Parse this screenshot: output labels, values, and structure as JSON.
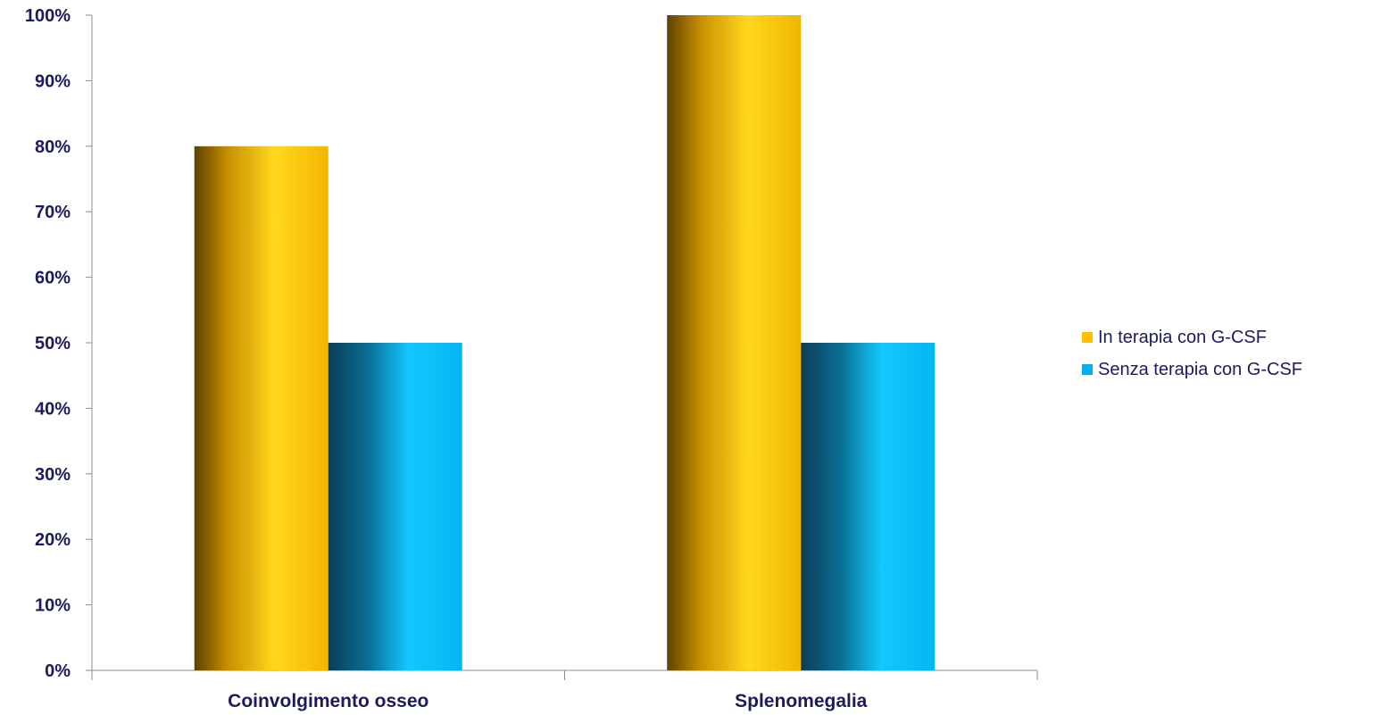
{
  "chart_data": {
    "type": "bar",
    "categories": [
      "Coinvolgimento osseo",
      "Splenomegalia"
    ],
    "series": [
      {
        "name": "In terapia con G-CSF",
        "values": [
          80,
          100
        ],
        "color": "#ffc000"
      },
      {
        "name": "Senza terapia con G-CSF",
        "values": [
          50,
          50
        ],
        "color": "#00b0f0"
      }
    ],
    "ylim": [
      0,
      100
    ],
    "yticks": [
      0,
      10,
      20,
      30,
      40,
      50,
      60,
      70,
      80,
      90,
      100
    ],
    "ytick_labels": [
      "0%",
      "10%",
      "20%",
      "30%",
      "40%",
      "50%",
      "60%",
      "70%",
      "80%",
      "90%",
      "100%"
    ],
    "grid": false,
    "legend_position": "right"
  }
}
